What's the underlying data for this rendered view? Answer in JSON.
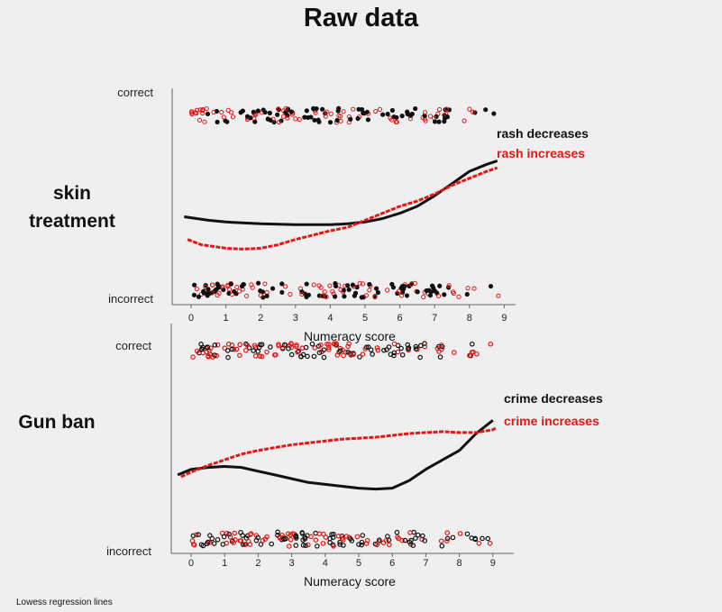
{
  "title": "Raw data",
  "row_labels": {
    "skin": "skin\ntreatment",
    "gun": "Gun ban"
  },
  "footnote": "Lowess regression lines",
  "colors": {
    "black_series": "#111111",
    "red_series": "#e01818",
    "axis": "#666666"
  },
  "chart_data": [
    {
      "type": "scatter",
      "panel": "skin treatment",
      "xlabel": "Numeracy score",
      "xlim": [
        -0.5,
        9.3
      ],
      "x_ticks": [
        "0",
        "1",
        "2",
        "3",
        "4",
        "5",
        "6",
        "7",
        "8",
        "9"
      ],
      "ylim": [
        0,
        1
      ],
      "y_tick_labels": [
        {
          "value": 1,
          "label": "correct"
        },
        {
          "value": 0,
          "label": "incorrect"
        }
      ],
      "legend_placement": "right",
      "series": [
        {
          "name": "rash decreases",
          "color": "#111111",
          "lowess": [
            [
              -0.2,
              0.42
            ],
            [
              0.5,
              0.4
            ],
            [
              1,
              0.39
            ],
            [
              2,
              0.38
            ],
            [
              3,
              0.375
            ],
            [
              4,
              0.375
            ],
            [
              4.5,
              0.38
            ],
            [
              5,
              0.39
            ],
            [
              5.5,
              0.41
            ],
            [
              6,
              0.44
            ],
            [
              6.5,
              0.48
            ],
            [
              7,
              0.54
            ],
            [
              7.5,
              0.61
            ],
            [
              8,
              0.68
            ],
            [
              8.5,
              0.72
            ],
            [
              8.8,
              0.74
            ]
          ]
        },
        {
          "name": "rash increases",
          "color": "#e01818",
          "lowess": [
            [
              -0.1,
              0.29
            ],
            [
              0.3,
              0.26
            ],
            [
              1,
              0.24
            ],
            [
              1.5,
              0.235
            ],
            [
              2,
              0.24
            ],
            [
              2.5,
              0.26
            ],
            [
              3,
              0.29
            ],
            [
              3.5,
              0.315
            ],
            [
              4,
              0.34
            ],
            [
              4.5,
              0.36
            ],
            [
              5,
              0.4
            ],
            [
              5.5,
              0.44
            ],
            [
              6,
              0.48
            ],
            [
              6.5,
              0.51
            ],
            [
              7,
              0.55
            ],
            [
              7.5,
              0.6
            ],
            [
              8,
              0.64
            ],
            [
              8.5,
              0.68
            ],
            [
              8.8,
              0.7
            ]
          ]
        }
      ]
    },
    {
      "type": "scatter",
      "panel": "Gun ban",
      "xlabel": "Numeracy score",
      "xlim": [
        -0.5,
        9.3
      ],
      "x_ticks": [
        "0",
        "1",
        "2",
        "3",
        "4",
        "5",
        "6",
        "7",
        "8",
        "9"
      ],
      "ylim": [
        0,
        1
      ],
      "y_tick_labels": [
        {
          "value": 1,
          "label": "correct"
        },
        {
          "value": 0,
          "label": "incorrect"
        }
      ],
      "legend_placement": "right",
      "series": [
        {
          "name": "crime decreases",
          "color": "#111111",
          "lowess": [
            [
              -0.4,
              0.34
            ],
            [
              0,
              0.37
            ],
            [
              0.5,
              0.38
            ],
            [
              1,
              0.385
            ],
            [
              1.5,
              0.38
            ],
            [
              2,
              0.36
            ],
            [
              2.5,
              0.34
            ],
            [
              3,
              0.32
            ],
            [
              3.5,
              0.3
            ],
            [
              4,
              0.29
            ],
            [
              4.5,
              0.28
            ],
            [
              5,
              0.27
            ],
            [
              5.5,
              0.265
            ],
            [
              6,
              0.27
            ],
            [
              6.5,
              0.31
            ],
            [
              7,
              0.37
            ],
            [
              7.5,
              0.42
            ],
            [
              8,
              0.47
            ],
            [
              8.5,
              0.56
            ],
            [
              9,
              0.63
            ]
          ]
        },
        {
          "name": "crime increases",
          "color": "#e01818",
          "lowess": [
            [
              -0.3,
              0.33
            ],
            [
              0,
              0.355
            ],
            [
              0.5,
              0.39
            ],
            [
              1,
              0.42
            ],
            [
              1.5,
              0.45
            ],
            [
              2,
              0.47
            ],
            [
              2.5,
              0.485
            ],
            [
              3,
              0.5
            ],
            [
              3.5,
              0.51
            ],
            [
              4,
              0.52
            ],
            [
              4.5,
              0.53
            ],
            [
              5,
              0.535
            ],
            [
              5.5,
              0.54
            ],
            [
              6,
              0.55
            ],
            [
              6.5,
              0.56
            ],
            [
              7,
              0.565
            ],
            [
              7.5,
              0.57
            ],
            [
              8,
              0.565
            ],
            [
              8.5,
              0.565
            ],
            [
              9,
              0.58
            ],
            [
              9.1,
              0.59
            ]
          ]
        }
      ]
    }
  ]
}
